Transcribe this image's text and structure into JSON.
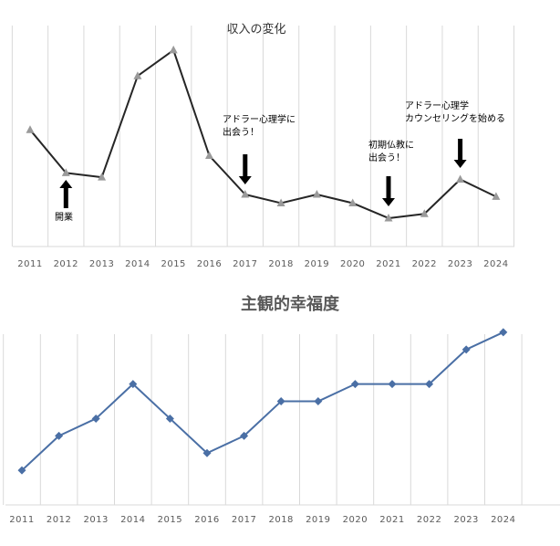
{
  "chart_data": [
    {
      "type": "line",
      "title": "収入の変化",
      "xlabel": "",
      "ylabel": "",
      "categories": [
        "2011",
        "2012",
        "2013",
        "2014",
        "2015",
        "2016",
        "2017",
        "2018",
        "2019",
        "2020",
        "2021",
        "2022",
        "2023",
        "2024"
      ],
      "values": [
        55,
        35,
        33,
        80,
        92,
        43,
        25,
        21,
        25,
        21,
        14,
        16,
        32,
        24
      ],
      "ylim": [
        0,
        100
      ],
      "grid": "vertical",
      "legend": "none",
      "colors": {
        "line": "#262626",
        "marker": "#9a9a9a",
        "grid": "#d9d9d9"
      },
      "marker": "triangle",
      "annotations": [
        {
          "category": "2012",
          "lines": [
            "開業"
          ],
          "arrow": "up"
        },
        {
          "category": "2017",
          "lines": [
            "アドラー心理学に",
            "出会う！"
          ],
          "arrow": "down"
        },
        {
          "category": "2021",
          "lines": [
            "初期仏教に",
            "出会う！"
          ],
          "arrow": "down"
        },
        {
          "category": "2023",
          "lines": [
            "アドラー心理学",
            "カウンセリングを始める"
          ],
          "arrow": "down"
        }
      ]
    },
    {
      "type": "line",
      "title": "主観的幸福度",
      "xlabel": "",
      "ylabel": "",
      "categories": [
        "2011",
        "2012",
        "2013",
        "2014",
        "2015",
        "2016",
        "2017",
        "2018",
        "2019",
        "2020",
        "2021",
        "2022",
        "2023",
        "2024"
      ],
      "values": [
        2,
        4,
        5,
        7,
        5,
        3,
        4,
        6,
        6,
        7,
        7,
        7,
        9,
        10
      ],
      "ylim": [
        0,
        11
      ],
      "grid": "vertical",
      "legend": "none",
      "colors": {
        "line": "#4a6fa5",
        "marker": "#4a6fa5",
        "grid": "#d9d9d9"
      },
      "marker": "diamond",
      "annotations": []
    }
  ]
}
